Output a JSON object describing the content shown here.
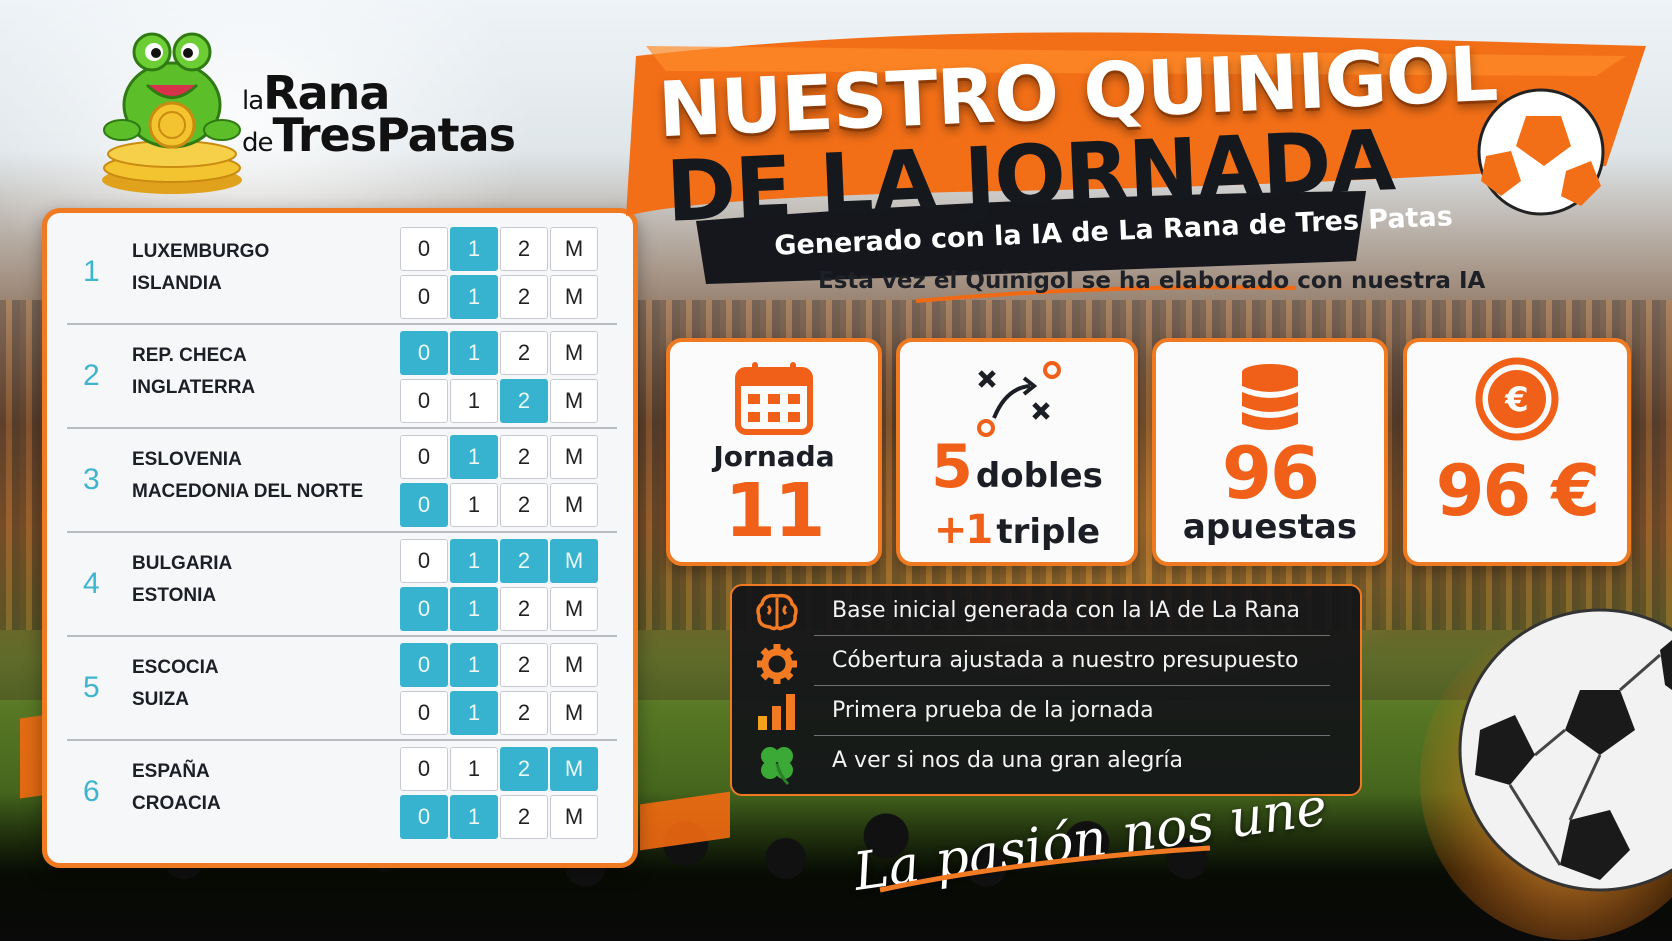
{
  "brand": {
    "line1_small": "la",
    "line1_big": "Rana",
    "line2_small": "de",
    "line2_big": "TresPatas"
  },
  "title": {
    "line1": "NUESTRO QUINIGOL",
    "line2": "DE LA JORNADA",
    "subtitle": "Generado con la IA de La Rana de Tres Patas",
    "tagline": "Esta vez el Quinigol se ha elaborado con nuestra IA"
  },
  "options": [
    "0",
    "1",
    "2",
    "M"
  ],
  "matches": [
    {
      "num": "1",
      "home": "LUXEMBURGO",
      "away": "ISLANDIA",
      "home_picks": [
        "1"
      ],
      "away_picks": [
        "1"
      ]
    },
    {
      "num": "2",
      "home": "REP. CHECA",
      "away": "INGLATERRA",
      "home_picks": [
        "0",
        "1"
      ],
      "away_picks": [
        "2"
      ]
    },
    {
      "num": "3",
      "home": "ESLOVENIA",
      "away": "MACEDONIA DEL NORTE",
      "home_picks": [
        "1"
      ],
      "away_picks": [
        "0"
      ]
    },
    {
      "num": "4",
      "home": "BULGARIA",
      "away": "ESTONIA",
      "home_picks": [
        "1",
        "2",
        "M"
      ],
      "away_picks": [
        "0",
        "1"
      ]
    },
    {
      "num": "5",
      "home": "ESCOCIA",
      "away": "SUIZA",
      "home_picks": [
        "0",
        "1"
      ],
      "away_picks": [
        "1"
      ]
    },
    {
      "num": "6",
      "home": "ESPAÑA",
      "away": "CROACIA",
      "home_picks": [
        "2",
        "M"
      ],
      "away_picks": [
        "0",
        "1"
      ]
    }
  ],
  "stats": {
    "jornada_label": "Jornada",
    "jornada_value": "11",
    "dobles_num": "5",
    "dobles_label": "dobles",
    "triple_num": "+1",
    "triple_label": "triple",
    "apuestas_num": "96",
    "apuestas_label": "apuestas",
    "cost": "96 €"
  },
  "info": [
    {
      "icon": "brain-icon",
      "text": "Base inicial generada con la IA de La Rana"
    },
    {
      "icon": "gear-icon",
      "text": "Cóbertura ajustada a nuestro presupuesto"
    },
    {
      "icon": "bar-chart-icon",
      "text": "Primera prueba de la jornada"
    },
    {
      "icon": "clover-icon",
      "text": "A ver si nos da una gran alegría"
    }
  ],
  "slogan": "La pasión nos une",
  "colors": {
    "accent": "#f07a21",
    "pick": "#37b2cf",
    "dark": "#15191e"
  }
}
